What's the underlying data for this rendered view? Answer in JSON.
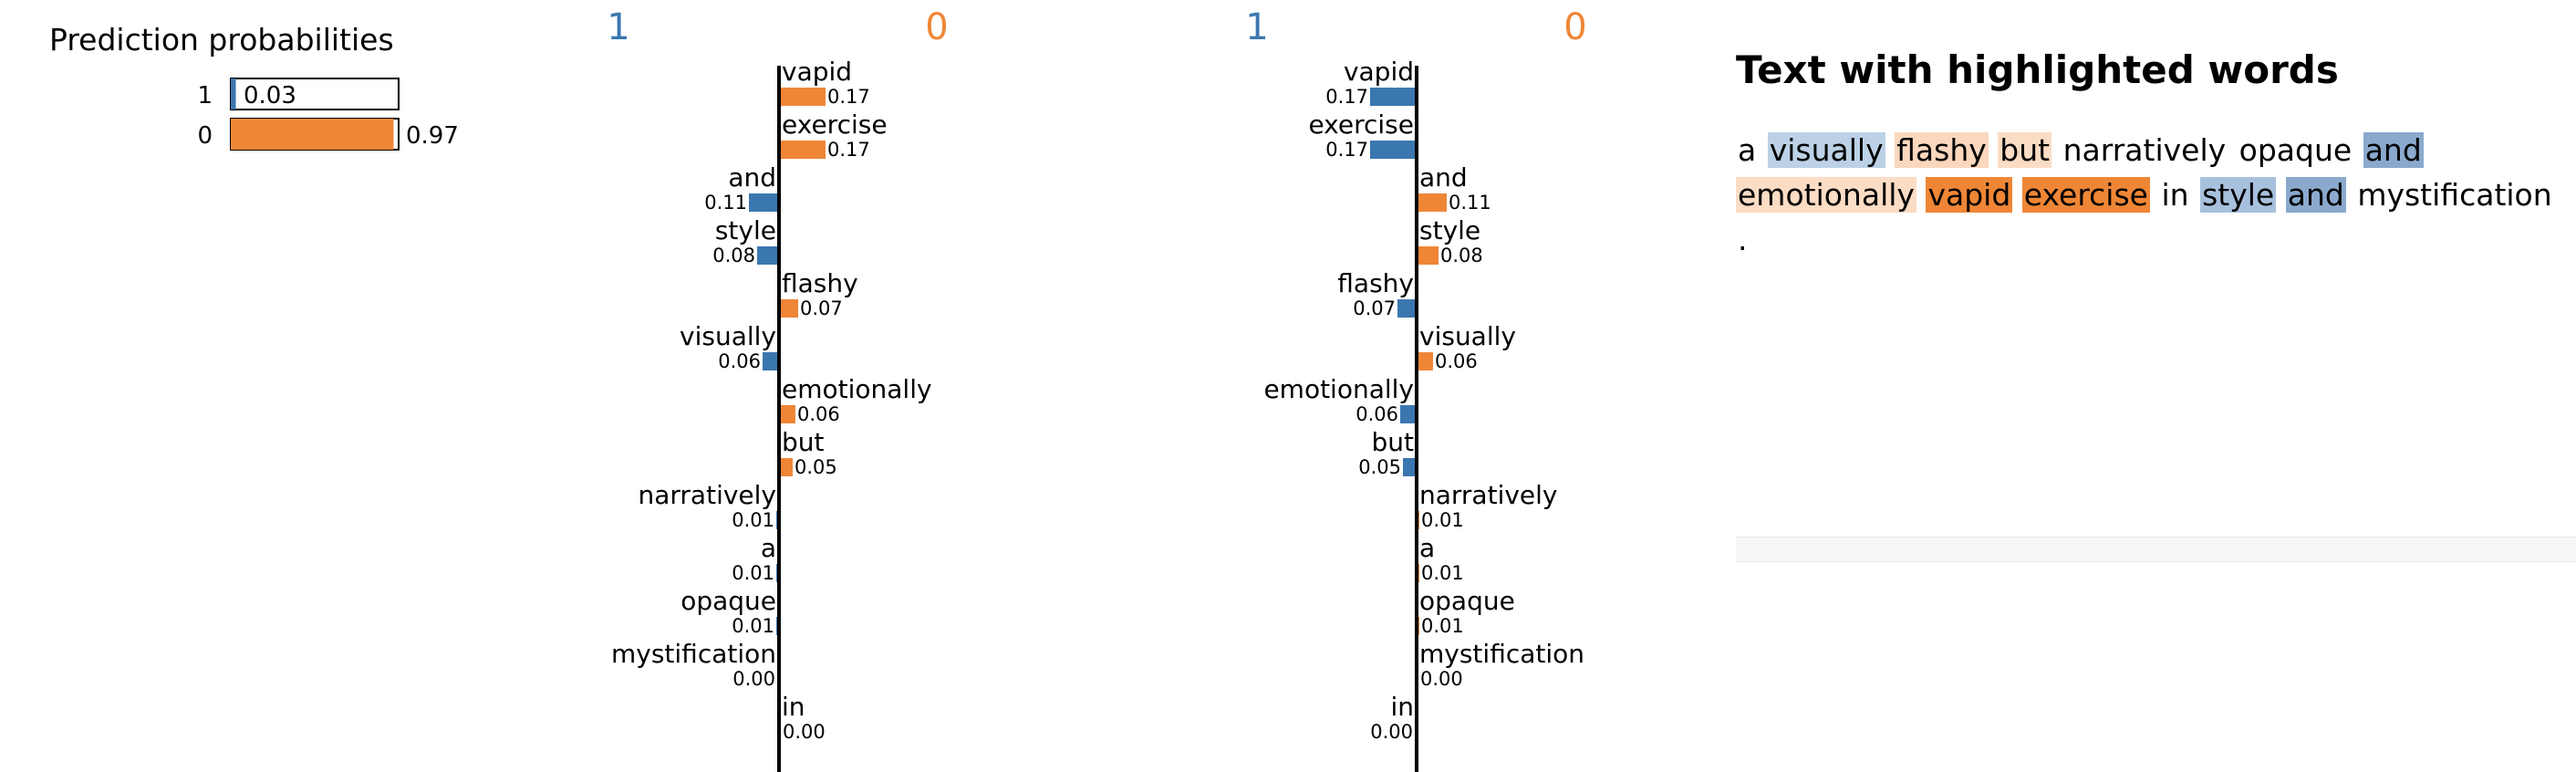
{
  "colors": {
    "class1": "#3b77af",
    "class0": "#ef8636"
  },
  "prediction": {
    "title": "Prediction probabilities",
    "rows": [
      {
        "label": "1",
        "value": 0.03,
        "value_text": "0.03",
        "color": "#3b77af"
      },
      {
        "label": "0",
        "value": 0.97,
        "value_text": "0.97",
        "color": "#ef8636"
      }
    ]
  },
  "highlight": {
    "title": "Text with highlighted words",
    "tokens": [
      {
        "text": "a",
        "bg": ""
      },
      {
        "text": "visually",
        "bg": "#bcd1e6"
      },
      {
        "text": "flashy",
        "bg": "#fad7bd"
      },
      {
        "text": "but",
        "bg": "#fbdcc4"
      },
      {
        "text": "narratively",
        "bg": ""
      },
      {
        "text": "opaque",
        "bg": ""
      },
      {
        "text": "and",
        "bg": "#8aa9cd"
      },
      {
        "text": "emotionally",
        "bg": "#fbdcc4"
      },
      {
        "text": "vapid",
        "bg": "#ef8636"
      },
      {
        "text": "exercise",
        "bg": "#ef8636"
      },
      {
        "text": "in",
        "bg": ""
      },
      {
        "text": "style",
        "bg": "#a7c0dd"
      },
      {
        "text": "and",
        "bg": "#8aa9cd"
      },
      {
        "text": "mystification",
        "bg": ""
      },
      {
        "text": ".",
        "bg": ""
      }
    ]
  },
  "chart_data": [
    {
      "type": "bar",
      "orientation": "horizontal",
      "left_label": "1",
      "right_label": "0",
      "items": [
        {
          "word": "vapid",
          "value": 0.17,
          "value_text": "0.17",
          "side": "right"
        },
        {
          "word": "exercise",
          "value": 0.17,
          "value_text": "0.17",
          "side": "right"
        },
        {
          "word": "and",
          "value": 0.11,
          "value_text": "0.11",
          "side": "left"
        },
        {
          "word": "style",
          "value": 0.08,
          "value_text": "0.08",
          "side": "left"
        },
        {
          "word": "flashy",
          "value": 0.07,
          "value_text": "0.07",
          "side": "right"
        },
        {
          "word": "visually",
          "value": 0.06,
          "value_text": "0.06",
          "side": "left"
        },
        {
          "word": "emotionally",
          "value": 0.06,
          "value_text": "0.06",
          "side": "right"
        },
        {
          "word": "but",
          "value": 0.05,
          "value_text": "0.05",
          "side": "right"
        },
        {
          "word": "narratively",
          "value": 0.01,
          "value_text": "0.01",
          "side": "left"
        },
        {
          "word": "a",
          "value": 0.01,
          "value_text": "0.01",
          "side": "left"
        },
        {
          "word": "opaque",
          "value": 0.01,
          "value_text": "0.01",
          "side": "left"
        },
        {
          "word": "mystification",
          "value": 0.0,
          "value_text": "0.00",
          "side": "left"
        },
        {
          "word": "in",
          "value": 0.0,
          "value_text": "0.00",
          "side": "right"
        }
      ]
    },
    {
      "type": "bar",
      "orientation": "horizontal",
      "left_label": "1",
      "right_label": "0",
      "items": [
        {
          "word": "vapid",
          "value": 0.17,
          "value_text": "0.17",
          "side": "left"
        },
        {
          "word": "exercise",
          "value": 0.17,
          "value_text": "0.17",
          "side": "left"
        },
        {
          "word": "and",
          "value": 0.11,
          "value_text": "0.11",
          "side": "right"
        },
        {
          "word": "style",
          "value": 0.08,
          "value_text": "0.08",
          "side": "right"
        },
        {
          "word": "flashy",
          "value": 0.07,
          "value_text": "0.07",
          "side": "left"
        },
        {
          "word": "visually",
          "value": 0.06,
          "value_text": "0.06",
          "side": "right"
        },
        {
          "word": "emotionally",
          "value": 0.06,
          "value_text": "0.06",
          "side": "left"
        },
        {
          "word": "but",
          "value": 0.05,
          "value_text": "0.05",
          "side": "left"
        },
        {
          "word": "narratively",
          "value": 0.01,
          "value_text": "0.01",
          "side": "right"
        },
        {
          "word": "a",
          "value": 0.01,
          "value_text": "0.01",
          "side": "right"
        },
        {
          "word": "opaque",
          "value": 0.01,
          "value_text": "0.01",
          "side": "right"
        },
        {
          "word": "mystification",
          "value": 0.0,
          "value_text": "0.00",
          "side": "right"
        },
        {
          "word": "in",
          "value": 0.0,
          "value_text": "0.00",
          "side": "left"
        }
      ]
    }
  ]
}
